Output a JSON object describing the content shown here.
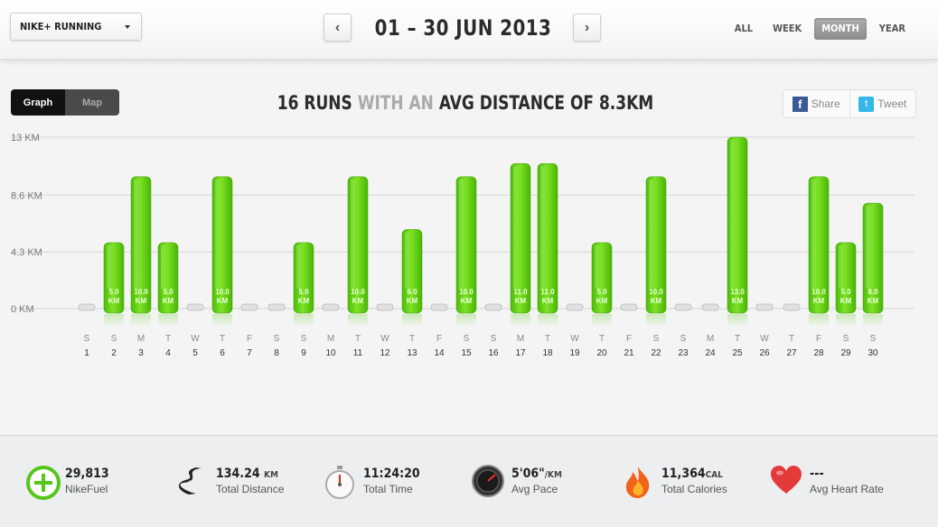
{
  "header": {
    "app_select": "NIKE+ RUNNING",
    "prev_icon": "‹",
    "next_icon": "›",
    "date_range": "01 – 30 JUN 2013",
    "range_tabs": [
      {
        "label": "ALL",
        "active": false
      },
      {
        "label": "WEEK",
        "active": false
      },
      {
        "label": "MONTH",
        "active": true
      },
      {
        "label": "YEAR",
        "active": false
      }
    ]
  },
  "view_toggle": {
    "graph": "Graph",
    "map": "Map",
    "selected": "graph"
  },
  "summary": {
    "count": "16 RUNS",
    "mid": "WITH AN",
    "tail": "AVG DISTANCE OF 8.3KM"
  },
  "share": {
    "facebook": "Share",
    "twitter": "Tweet"
  },
  "chart_data": {
    "type": "bar",
    "y_ticks": [
      "13 KM",
      "8.6 KM",
      "4.3 KM",
      "0 KM"
    ],
    "ylim": [
      0,
      13
    ],
    "days": [
      {
        "dow": "S",
        "day": "1",
        "value": 0
      },
      {
        "dow": "S",
        "day": "2",
        "value": 5.0
      },
      {
        "dow": "M",
        "day": "3",
        "value": 10.0
      },
      {
        "dow": "T",
        "day": "4",
        "value": 5.0
      },
      {
        "dow": "W",
        "day": "5",
        "value": 0
      },
      {
        "dow": "T",
        "day": "6",
        "value": 10.0
      },
      {
        "dow": "F",
        "day": "7",
        "value": 0
      },
      {
        "dow": "S",
        "day": "8",
        "value": 0
      },
      {
        "dow": "S",
        "day": "9",
        "value": 5.0
      },
      {
        "dow": "M",
        "day": "10",
        "value": 0
      },
      {
        "dow": "T",
        "day": "11",
        "value": 10.0
      },
      {
        "dow": "W",
        "day": "12",
        "value": 0
      },
      {
        "dow": "T",
        "day": "13",
        "value": 6.0
      },
      {
        "dow": "F",
        "day": "14",
        "value": 0
      },
      {
        "dow": "S",
        "day": "15",
        "value": 10.0
      },
      {
        "dow": "S",
        "day": "16",
        "value": 0
      },
      {
        "dow": "M",
        "day": "17",
        "value": 11.0
      },
      {
        "dow": "T",
        "day": "18",
        "value": 11.0
      },
      {
        "dow": "W",
        "day": "19",
        "value": 0
      },
      {
        "dow": "T",
        "day": "20",
        "value": 5.0
      },
      {
        "dow": "F",
        "day": "21",
        "value": 0
      },
      {
        "dow": "S",
        "day": "22",
        "value": 10.0
      },
      {
        "dow": "S",
        "day": "23",
        "value": 0
      },
      {
        "dow": "M",
        "day": "24",
        "value": 0
      },
      {
        "dow": "T",
        "day": "25",
        "value": 13.0
      },
      {
        "dow": "W",
        "day": "26",
        "value": 0
      },
      {
        "dow": "T",
        "day": "27",
        "value": 0
      },
      {
        "dow": "F",
        "day": "28",
        "value": 10.0
      },
      {
        "dow": "S",
        "day": "29",
        "value": 5.0
      },
      {
        "dow": "S",
        "day": "30",
        "value": 8.0
      }
    ],
    "bar_unit": "KM",
    "bar_color": "#5fd10f"
  },
  "stats": [
    {
      "icon": "nikefuel-icon",
      "value": "29,813",
      "unit": "",
      "label": "NikeFuel"
    },
    {
      "icon": "road-icon",
      "value": "134.24",
      "unit": "KM",
      "label": "Total Distance"
    },
    {
      "icon": "stopwatch-icon",
      "value": "11:24:20",
      "unit": "",
      "label": "Total Time"
    },
    {
      "icon": "speedometer-icon",
      "value": "5'06\"",
      "unit": "/KM",
      "label": "Avg Pace"
    },
    {
      "icon": "flame-icon",
      "value": "11,364",
      "unit": "CAL",
      "label": "Total Calories"
    },
    {
      "icon": "heart-icon",
      "value": "---",
      "unit": "",
      "label": "Avg Heart Rate"
    }
  ]
}
